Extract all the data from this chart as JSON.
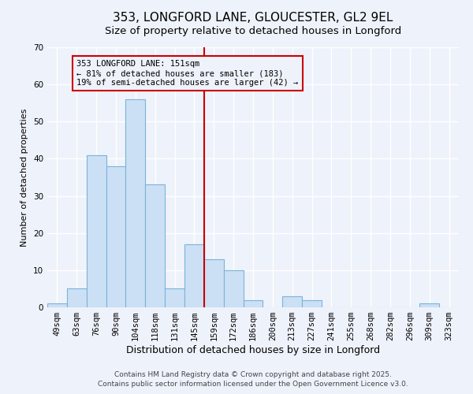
{
  "title": "353, LONGFORD LANE, GLOUCESTER, GL2 9EL",
  "subtitle": "Size of property relative to detached houses in Longford",
  "bar_labels": [
    "49sqm",
    "63sqm",
    "76sqm",
    "90sqm",
    "104sqm",
    "118sqm",
    "131sqm",
    "145sqm",
    "159sqm",
    "172sqm",
    "186sqm",
    "200sqm",
    "213sqm",
    "227sqm",
    "241sqm",
    "255sqm",
    "268sqm",
    "282sqm",
    "296sqm",
    "309sqm",
    "323sqm"
  ],
  "bar_heights": [
    1,
    5,
    41,
    38,
    56,
    33,
    5,
    17,
    13,
    10,
    2,
    0,
    3,
    2,
    0,
    0,
    0,
    0,
    0,
    1,
    0
  ],
  "bar_color": "#cce0f5",
  "bar_edge_color": "#7ab3d8",
  "xlabel": "Distribution of detached houses by size in Longford",
  "ylabel": "Number of detached properties",
  "ylim": [
    0,
    70
  ],
  "yticks": [
    0,
    10,
    20,
    30,
    40,
    50,
    60,
    70
  ],
  "vline_x": 7.5,
  "vline_color": "#cc0000",
  "annotation_title": "353 LONGFORD LANE: 151sqm",
  "annotation_line1": "← 81% of detached houses are smaller (183)",
  "annotation_line2": "19% of semi-detached houses are larger (42) →",
  "annotation_box_color": "#cc0000",
  "footer_line1": "Contains HM Land Registry data © Crown copyright and database right 2025.",
  "footer_line2": "Contains public sector information licensed under the Open Government Licence v3.0.",
  "bg_color": "#eef2fa",
  "grid_color": "#ffffff",
  "title_fontsize": 11,
  "subtitle_fontsize": 9.5,
  "xlabel_fontsize": 9,
  "ylabel_fontsize": 8,
  "tick_fontsize": 7.5,
  "footer_fontsize": 6.5,
  "ann_fontsize": 7.5
}
